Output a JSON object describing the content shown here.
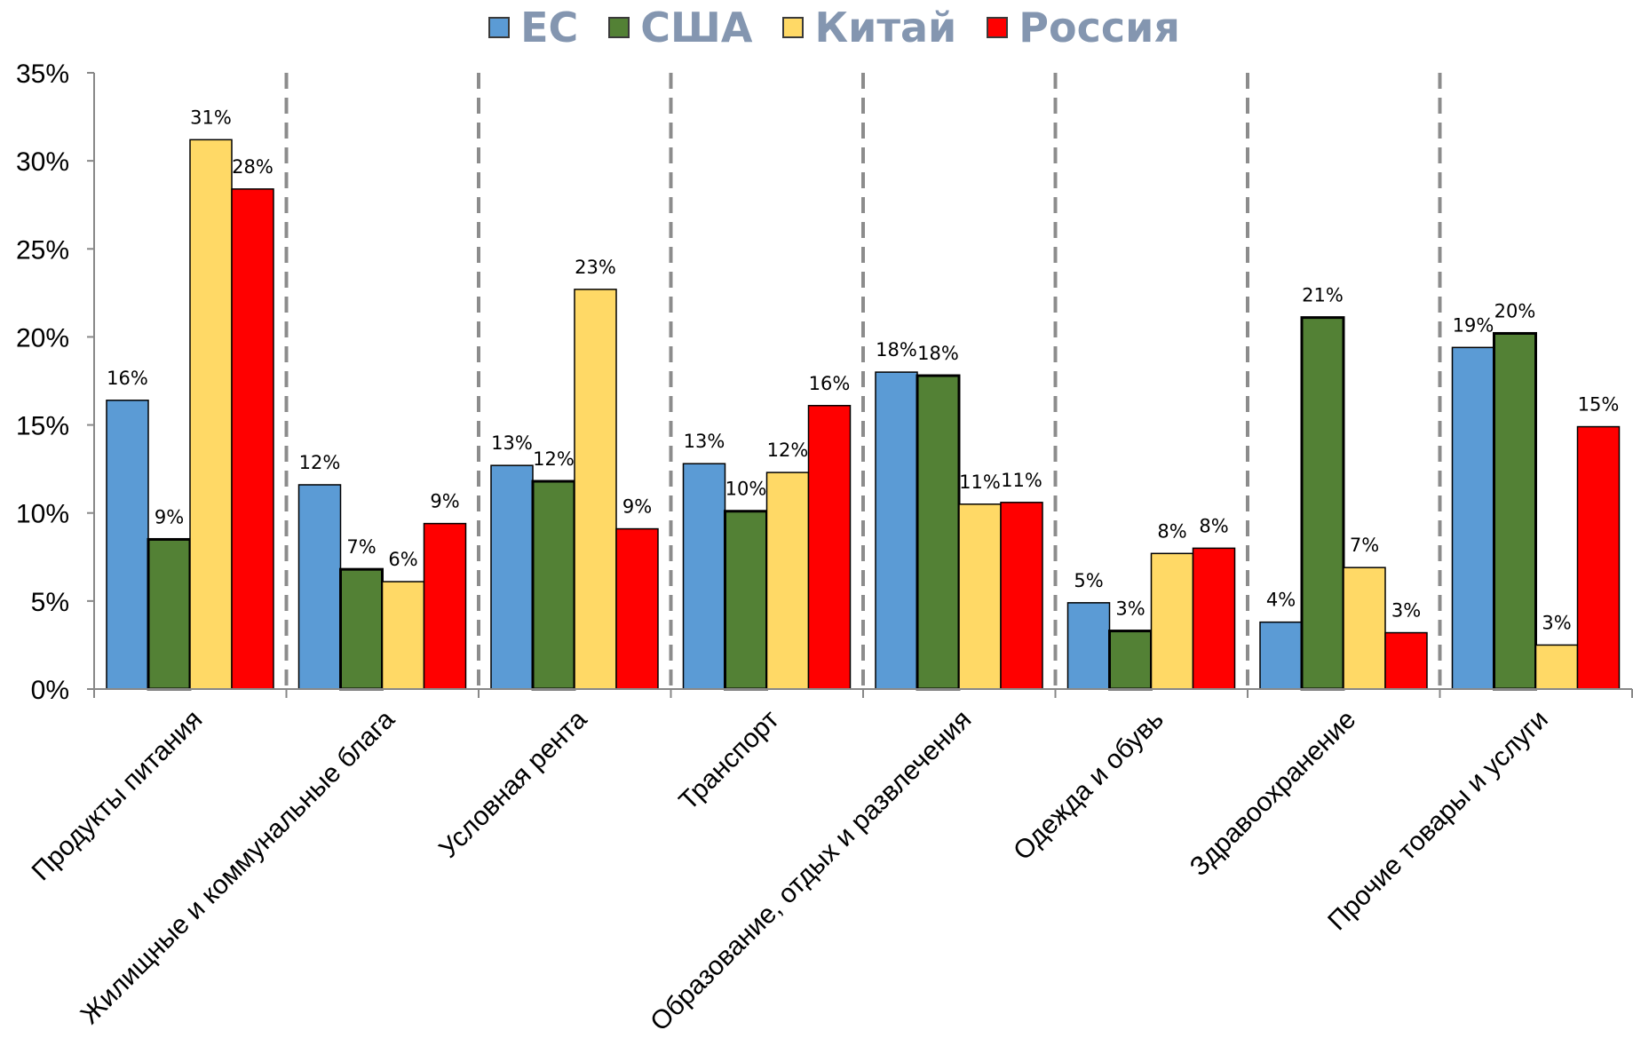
{
  "chart_data": {
    "type": "bar",
    "categories": [
      "Продукты питания",
      "Жилищные и коммунальные блага",
      "Условная рента",
      "Транспорт",
      "Образование, отдых и развлечения",
      "Одежда и обувь",
      "Здравоохранение",
      "Прочие товары и услуги"
    ],
    "series": [
      {
        "name": "ЕС",
        "color": "#5b9bd5",
        "values": [
          16.4,
          11.6,
          12.7,
          12.8,
          18.0,
          4.9,
          3.8,
          19.4
        ],
        "labels": [
          "16%",
          "12%",
          "13%",
          "13%",
          "18%",
          "5%",
          "4%",
          "19%"
        ]
      },
      {
        "name": "США",
        "color": "#538135",
        "values": [
          8.5,
          6.8,
          11.8,
          10.1,
          17.8,
          3.3,
          21.1,
          20.2
        ],
        "labels": [
          "9%",
          "7%",
          "12%",
          "10%",
          "18%",
          "3%",
          "21%",
          "20%"
        ]
      },
      {
        "name": "Китай",
        "color": "#ffd966",
        "values": [
          31.2,
          6.1,
          22.7,
          12.3,
          10.5,
          7.7,
          6.9,
          2.5
        ],
        "labels": [
          "31%",
          "6%",
          "23%",
          "12%",
          "11%",
          "8%",
          "7%",
          "3%"
        ]
      },
      {
        "name": "Россия",
        "color": "#ff0000",
        "values": [
          28.4,
          9.4,
          9.1,
          16.1,
          10.6,
          8.0,
          3.2,
          14.9
        ],
        "labels": [
          "28%",
          "9%",
          "9%",
          "16%",
          "11%",
          "8%",
          "3%",
          "15%"
        ]
      }
    ],
    "yticks": [
      "0%",
      "5%",
      "10%",
      "15%",
      "20%",
      "25%",
      "30%",
      "35%"
    ],
    "ylim": [
      0,
      35
    ],
    "legend_position": "top-center",
    "grid": false,
    "group_separators": "dashed"
  }
}
